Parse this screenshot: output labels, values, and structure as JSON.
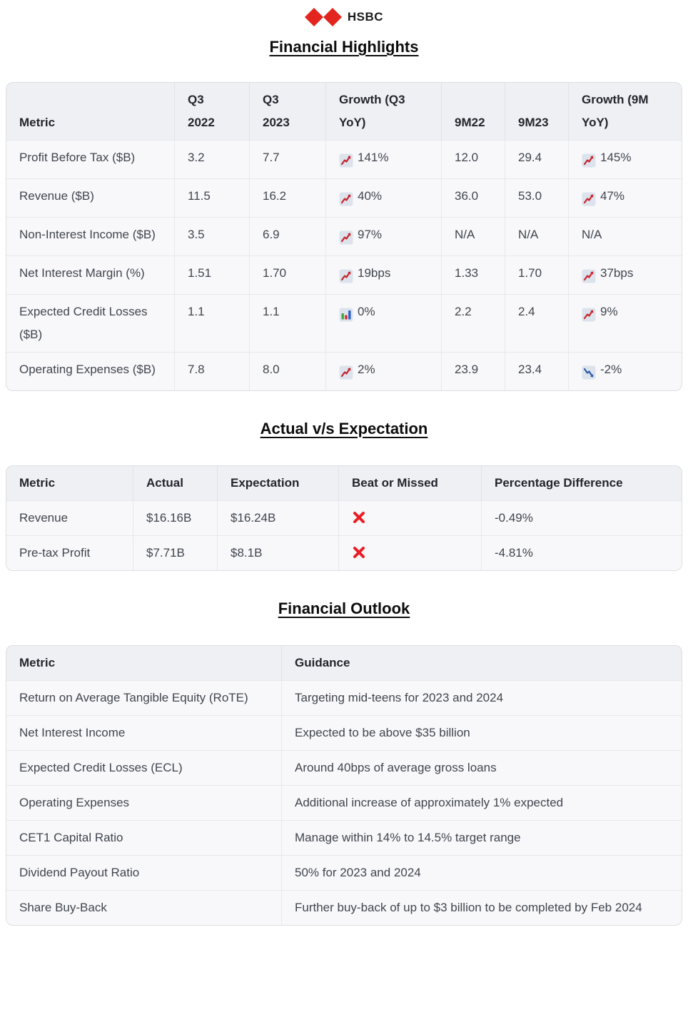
{
  "header": {
    "brand": "HSBC",
    "logo_icon": "hsbc-hexagon-icon",
    "brand_color": "#e3251f"
  },
  "colors": {
    "hsbc_red": "#e3251f",
    "cross_red": "#ed1c24",
    "chart_up_red": "#c8242c",
    "chart_down_blue": "#2d5aa8",
    "bar_green": "#3aa83e",
    "bar_red": "#d6272e",
    "bar_blue": "#2b62c4",
    "icon_bg": "#dce3ec",
    "header_bg": "#eff0f3",
    "row_bg": "#f8f8fa",
    "border": "#e2e3e8"
  },
  "sections": [
    {
      "title": "Financial Highlights",
      "table": {
        "columns": [
          "Metric",
          "Q3 2022",
          "Q3 2023",
          "Growth (Q3 YoY)",
          "9M22",
          "9M23",
          "Growth (9M YoY)"
        ],
        "rows": [
          [
            "Profit Before Tax ($B)",
            "3.2",
            "7.7",
            {
              "icon": "chart-increasing-icon",
              "text": "141%"
            },
            "12.0",
            "29.4",
            {
              "icon": "chart-increasing-icon",
              "text": "145%"
            }
          ],
          [
            "Revenue ($B)",
            "11.5",
            "16.2",
            {
              "icon": "chart-increasing-icon",
              "text": "40%"
            },
            "36.0",
            "53.0",
            {
              "icon": "chart-increasing-icon",
              "text": "47%"
            }
          ],
          [
            "Non-Interest Income ($B)",
            "3.5",
            "6.9",
            {
              "icon": "chart-increasing-icon",
              "text": "97%"
            },
            "N/A",
            "N/A",
            "N/A"
          ],
          [
            "Net Interest Margin (%)",
            "1.51",
            "1.70",
            {
              "icon": "chart-increasing-icon",
              "text": "19bps"
            },
            "1.33",
            "1.70",
            {
              "icon": "chart-increasing-icon",
              "text": "37bps"
            }
          ],
          [
            "Expected Credit Losses ($B)",
            "1.1",
            "1.1",
            {
              "icon": "bar-chart-icon",
              "text": "0%"
            },
            "2.2",
            "2.4",
            {
              "icon": "chart-increasing-icon",
              "text": "9%"
            }
          ],
          [
            "Operating Expenses ($B)",
            "7.8",
            "8.0",
            {
              "icon": "chart-increasing-icon",
              "text": "2%"
            },
            "23.9",
            "23.4",
            {
              "icon": "chart-decreasing-icon",
              "text": "-2%"
            }
          ]
        ]
      }
    },
    {
      "title": "Actual v/s Expectation",
      "table": {
        "columns": [
          "Metric",
          "Actual",
          "Expectation",
          "Beat or Missed",
          "Percentage Difference"
        ],
        "rows": [
          [
            "Revenue",
            "$16.16B",
            "$16.24B",
            {
              "icon": "cross-mark-icon",
              "text": ""
            },
            "-0.49%"
          ],
          [
            "Pre-tax Profit",
            "$7.71B",
            "$8.1B",
            {
              "icon": "cross-mark-icon",
              "text": ""
            },
            "-4.81%"
          ]
        ]
      }
    },
    {
      "title": "Financial Outlook",
      "table": {
        "columns": [
          "Metric",
          "Guidance"
        ],
        "rows": [
          [
            "Return on Average Tangible Equity (RoTE)",
            "Targeting mid-teens for 2023 and 2024"
          ],
          [
            "Net Interest Income",
            "Expected to be above $35 billion"
          ],
          [
            "Expected Credit Losses (ECL)",
            "Around 40bps of average gross loans"
          ],
          [
            "Operating Expenses",
            "Additional increase of approximately 1% expected"
          ],
          [
            "CET1 Capital Ratio",
            "Manage within 14% to 14.5% target range"
          ],
          [
            "Dividend Payout Ratio",
            "50% for 2023 and 2024"
          ],
          [
            "Share Buy-Back",
            "Further buy-back of up to $3 billion to be completed by Feb 2024"
          ]
        ]
      }
    }
  ]
}
